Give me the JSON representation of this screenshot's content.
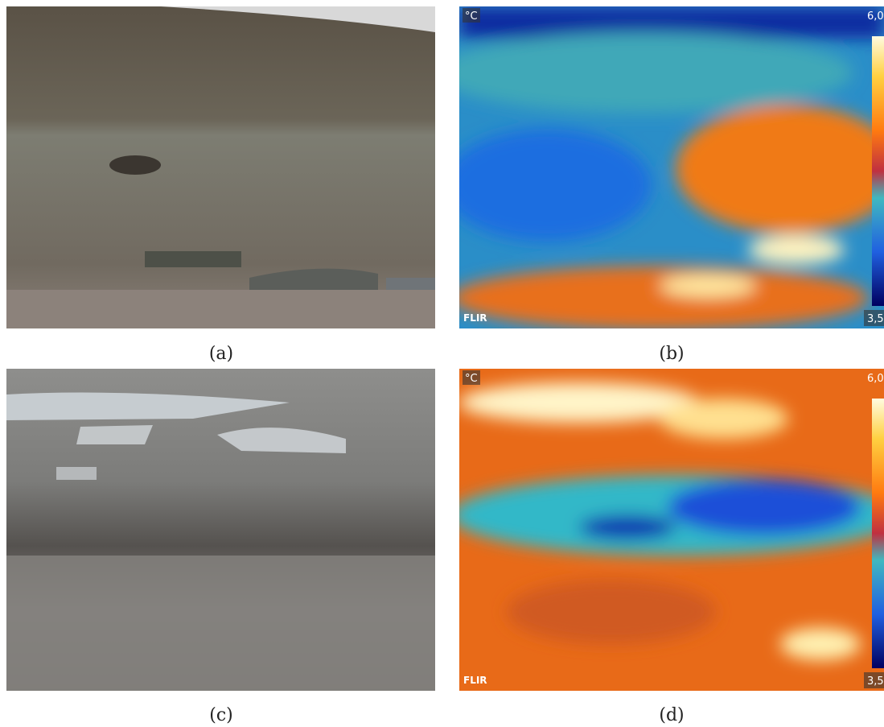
{
  "panels": [
    {
      "label": "(a)"
    },
    {
      "label": "(b)",
      "unit": "°C",
      "max": "6,0",
      "min": "3,5",
      "logo": "FLIR"
    },
    {
      "label": "(c)"
    },
    {
      "label": "(d)",
      "unit": "°C",
      "max": "6,0",
      "min": "3,5",
      "logo": "FLIR"
    }
  ]
}
